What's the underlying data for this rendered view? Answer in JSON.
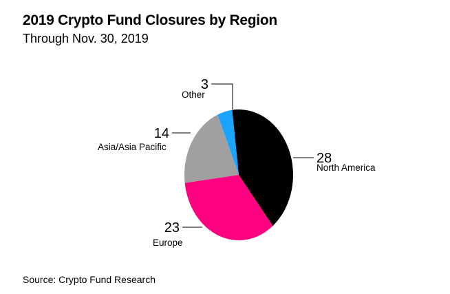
{
  "header": {
    "title": "2019 Crypto Fund Closures by Region",
    "subtitle": "Through Nov. 30, 2019"
  },
  "footer": {
    "source": "Source: Crypto Fund Research"
  },
  "chart_data": {
    "type": "pie",
    "title": "2019 Crypto Fund Closures by Region",
    "subtitle": "Through Nov. 30, 2019",
    "legend": "none",
    "slices": [
      {
        "label": "North America",
        "value": 28,
        "color": "#000000"
      },
      {
        "label": "Europe",
        "value": 23,
        "color": "#ff0080"
      },
      {
        "label": "Asia/Asia Pacific",
        "value": 14,
        "color": "#a0a0a0"
      },
      {
        "label": "Other",
        "value": 3,
        "color": "#1aa3ff"
      }
    ]
  }
}
